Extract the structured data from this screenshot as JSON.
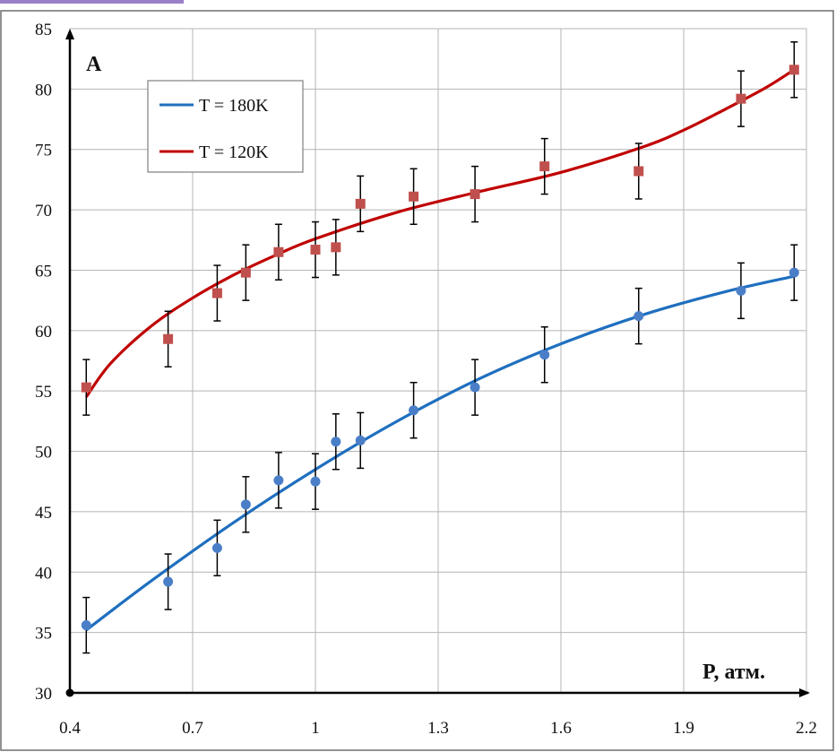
{
  "chart_data": {
    "type": "scatter",
    "title": "",
    "xlabel": "P, атм.",
    "ylabel": "A",
    "xlim": [
      0.4,
      2.2
    ],
    "ylim": [
      30,
      85
    ],
    "x_ticks": [
      "0.4",
      "0.7",
      "1",
      "1.3",
      "1.6",
      "1.9",
      "2.2"
    ],
    "x_tick_values": [
      0.4,
      0.7,
      1.0,
      1.3,
      1.6,
      1.9,
      2.2
    ],
    "y_ticks": [
      "30",
      "35",
      "40",
      "45",
      "50",
      "55",
      "60",
      "65",
      "70",
      "75",
      "80",
      "85"
    ],
    "y_tick_values": [
      30,
      35,
      40,
      45,
      50,
      55,
      60,
      65,
      70,
      75,
      80,
      85
    ],
    "grid": true,
    "legend_position": "top-left",
    "series": [
      {
        "name": "T = 180K",
        "color": "#1f6fbf",
        "marker": "circle",
        "marker_color": "#4a7fc8",
        "x": [
          0.44,
          0.64,
          0.76,
          0.83,
          0.91,
          1.0,
          1.05,
          1.11,
          1.24,
          1.39,
          1.56,
          1.79,
          2.04,
          2.17
        ],
        "y": [
          35.6,
          39.2,
          42.0,
          45.6,
          47.6,
          47.5,
          50.8,
          50.9,
          53.4,
          55.3,
          58.0,
          61.2,
          63.3,
          64.8
        ],
        "error": 2.3,
        "fit_x": [
          0.44,
          0.6,
          0.8,
          1.0,
          1.2,
          1.4,
          1.6,
          1.8,
          2.0,
          2.17
        ],
        "fit_y": [
          35.2,
          39.3,
          44.1,
          48.5,
          52.5,
          56.0,
          58.9,
          61.3,
          63.2,
          64.5
        ]
      },
      {
        "name": "T = 120K",
        "color": "#c00000",
        "marker": "square",
        "marker_color": "#c0504d",
        "x": [
          0.44,
          0.64,
          0.76,
          0.83,
          0.91,
          1.0,
          1.05,
          1.11,
          1.24,
          1.39,
          1.56,
          1.79,
          2.04,
          2.17
        ],
        "y": [
          55.3,
          59.3,
          63.1,
          64.8,
          66.5,
          66.7,
          66.9,
          70.5,
          71.1,
          71.3,
          73.6,
          73.2,
          79.2,
          81.6
        ],
        "error": 2.3,
        "fit_x": [
          0.44,
          0.5,
          0.6,
          0.7,
          0.8,
          0.9,
          1.0,
          1.2,
          1.4,
          1.6,
          1.8,
          1.9,
          2.0,
          2.1,
          2.17
        ],
        "fit_y": [
          54.5,
          57.3,
          60.4,
          62.7,
          64.6,
          66.2,
          67.6,
          69.8,
          71.5,
          73.1,
          75.2,
          76.6,
          78.3,
          80.1,
          81.6
        ]
      }
    ]
  }
}
